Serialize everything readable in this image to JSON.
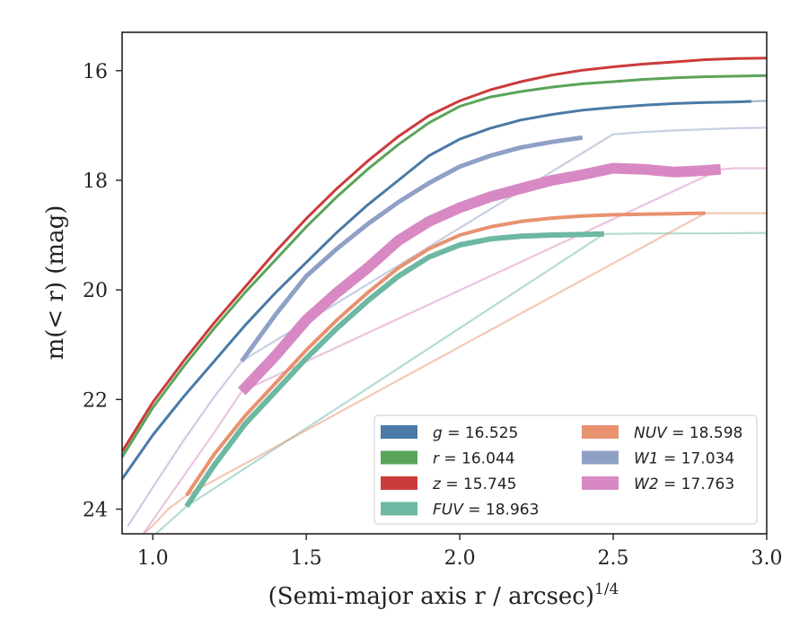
{
  "chart_data": {
    "type": "line",
    "xlabel": "(Semi-major axis r / arcsec)",
    "xlabel_superscript": "1/4",
    "ylabel": "m(< r) (mag)",
    "xlim": [
      0.9,
      3.0
    ],
    "ylim": [
      24.45,
      15.3
    ],
    "y_inverted": true,
    "xticks": [
      "1.0",
      "1.5",
      "2.0",
      "2.5",
      "3.0"
    ],
    "yticks": [
      "16",
      "18",
      "20",
      "22",
      "24"
    ],
    "grid": false,
    "legend_position": "lower-right",
    "series": [
      {
        "name": "g = 16.525",
        "color": "#4a7aa6",
        "key": "g",
        "x": [
          0.9,
          1.0,
          1.1,
          1.2,
          1.3,
          1.4,
          1.5,
          1.6,
          1.7,
          1.8,
          1.9,
          2.0,
          2.1,
          2.2,
          2.3,
          2.4,
          2.5,
          2.6,
          2.7,
          2.8,
          2.9,
          2.95
        ],
        "y": [
          23.45,
          22.65,
          21.95,
          21.3,
          20.65,
          20.05,
          19.5,
          18.95,
          18.45,
          18.0,
          17.55,
          17.25,
          17.05,
          16.9,
          16.8,
          16.72,
          16.67,
          16.63,
          16.6,
          16.58,
          16.57,
          16.56
        ],
        "width": 3,
        "faint_start": 0.9,
        "faint_end": 3.0,
        "faint_x": [
          2.95,
          3.0
        ],
        "faint_y": [
          16.56,
          16.55
        ]
      },
      {
        "name": "r = 16.044",
        "color": "#5aa45a",
        "key": "r",
        "x": [
          0.9,
          1.0,
          1.1,
          1.2,
          1.3,
          1.4,
          1.5,
          1.6,
          1.7,
          1.8,
          1.9,
          2.0,
          2.1,
          2.2,
          2.3,
          2.4,
          2.5,
          2.6,
          2.7,
          2.8,
          2.9,
          3.0
        ],
        "y": [
          23.05,
          22.15,
          21.4,
          20.7,
          20.05,
          19.45,
          18.85,
          18.3,
          17.8,
          17.35,
          16.95,
          16.65,
          16.48,
          16.38,
          16.3,
          16.24,
          16.2,
          16.16,
          16.13,
          16.11,
          16.1,
          16.09
        ],
        "width": 3
      },
      {
        "name": "z = 15.745",
        "color": "#cc3b3b",
        "key": "z",
        "x": [
          0.9,
          1.0,
          1.1,
          1.2,
          1.3,
          1.4,
          1.5,
          1.6,
          1.7,
          1.8,
          1.9,
          2.0,
          2.1,
          2.2,
          2.3,
          2.4,
          2.5,
          2.6,
          2.7,
          2.8,
          2.9,
          3.0
        ],
        "y": [
          22.95,
          22.05,
          21.3,
          20.6,
          19.95,
          19.3,
          18.7,
          18.15,
          17.65,
          17.2,
          16.82,
          16.55,
          16.35,
          16.2,
          16.08,
          15.99,
          15.93,
          15.88,
          15.84,
          15.8,
          15.78,
          15.77
        ],
        "width": 3
      },
      {
        "name": "FUV = 18.963",
        "color": "#6db8a3",
        "key": "FUV",
        "x": [
          1.11,
          1.2,
          1.3,
          1.4,
          1.5,
          1.6,
          1.7,
          1.8,
          1.9,
          2.0,
          2.1,
          2.2,
          2.3,
          2.4,
          2.47
        ],
        "y": [
          23.95,
          23.2,
          22.45,
          21.85,
          21.25,
          20.7,
          20.2,
          19.75,
          19.4,
          19.18,
          19.07,
          19.02,
          19.0,
          18.99,
          18.98
        ],
        "width": 6,
        "faint_x": [
          0.98,
          1.0,
          1.05,
          1.11,
          1.11,
          2.47,
          2.6,
          2.8,
          3.0
        ],
        "faint_y": [
          24.6,
          24.5,
          24.25,
          23.95,
          23.95,
          18.98,
          18.97,
          18.97,
          18.96
        ]
      },
      {
        "name": "NUV = 18.598",
        "color": "#e8926f",
        "key": "NUV",
        "x": [
          1.11,
          1.2,
          1.3,
          1.4,
          1.5,
          1.6,
          1.7,
          1.8,
          1.9,
          2.0,
          2.1,
          2.2,
          2.3,
          2.4,
          2.5,
          2.6,
          2.7,
          2.8
        ],
        "y": [
          23.75,
          23.0,
          22.3,
          21.7,
          21.1,
          20.55,
          20.05,
          19.6,
          19.25,
          19.0,
          18.85,
          18.75,
          18.69,
          18.65,
          18.63,
          18.62,
          18.61,
          18.6
        ],
        "width": 4,
        "faint_x": [
          0.95,
          1.0,
          1.05,
          1.11,
          1.11,
          2.8,
          2.9,
          3.0
        ],
        "faint_y": [
          24.55,
          24.3,
          24.0,
          23.75,
          23.75,
          18.6,
          18.6,
          18.6
        ]
      },
      {
        "name": "W1 = 17.034",
        "color": "#8fa0c6",
        "key": "W1",
        "x": [
          1.29,
          1.4,
          1.5,
          1.6,
          1.7,
          1.8,
          1.9,
          2.0,
          2.1,
          2.2,
          2.3,
          2.4
        ],
        "y": [
          21.3,
          20.45,
          19.75,
          19.25,
          18.8,
          18.4,
          18.05,
          17.75,
          17.55,
          17.4,
          17.3,
          17.22
        ],
        "width": 5,
        "faint_x": [
          0.92,
          1.0,
          1.1,
          1.2,
          1.29,
          1.29,
          2.5,
          2.6,
          2.7,
          2.8,
          2.9,
          3.0
        ],
        "faint_y": [
          24.3,
          23.6,
          22.75,
          21.95,
          21.3,
          21.3,
          17.16,
          17.12,
          17.09,
          17.07,
          17.05,
          17.04
        ]
      },
      {
        "name": "W2 = 17.763",
        "color": "#d889c3",
        "key": "W2",
        "x": [
          1.29,
          1.4,
          1.5,
          1.6,
          1.7,
          1.8,
          1.9,
          2.0,
          2.1,
          2.2,
          2.3,
          2.4,
          2.5,
          2.6,
          2.7,
          2.8,
          2.85
        ],
        "y": [
          21.85,
          21.2,
          20.55,
          20.05,
          19.6,
          19.1,
          18.75,
          18.5,
          18.3,
          18.15,
          18.0,
          17.9,
          17.78,
          17.8,
          17.85,
          17.82,
          17.8
        ],
        "width": 12,
        "faint_x": [
          0.95,
          1.0,
          1.1,
          1.2,
          1.29,
          2.85,
          2.9,
          3.0
        ],
        "faint_y": [
          24.6,
          24.2,
          23.4,
          22.6,
          21.85,
          17.8,
          17.78,
          17.78
        ]
      }
    ],
    "legend": {
      "left_column": [
        {
          "series": "g",
          "label": "g = 16.525"
        },
        {
          "series": "r",
          "label": "r = 16.044"
        },
        {
          "series": "z",
          "label": "z = 15.745"
        },
        {
          "series": "FUV",
          "label": "FUV = 18.963"
        }
      ],
      "right_column": [
        {
          "series": "NUV",
          "label": "NUV = 18.598"
        },
        {
          "series": "W1",
          "label": "W1 = 17.034"
        },
        {
          "series": "W2",
          "label": "W2 = 17.763"
        }
      ]
    }
  }
}
